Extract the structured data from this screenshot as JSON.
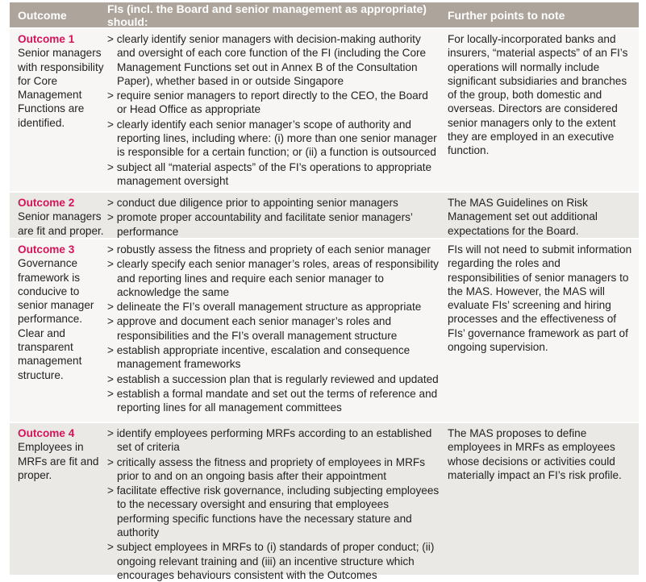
{
  "headers": [
    "Outcome",
    "FIs (incl. the Board and senior management as appropriate) should:",
    "Further points to note"
  ],
  "rows": [
    {
      "outcome": "Outcome 1",
      "description": "Senior managers with responsibility for Core Management Functions are identified.",
      "items": [
        "clearly identify senior managers with decision-making authority and oversight of each core function of the FI (including the Core Management Functions set out in Annex B of the Consultation Paper), whether based in or outside Singapore",
        "require senior managers to report directly to the CEO, the Board or Head Office as appropriate",
        "clearly identify each senior manager’s scope of authority and reporting lines, including where: (i) more than one senior manager is responsible for a certain function; or (ii) a function is outsourced",
        "subject all “material aspects” of the FI’s operations to appropriate management oversight"
      ],
      "notes": "For locally-incorporated banks and insurers, “material aspects” of an FI’s operations will normally include significant subsidiaries and branches of the group, both domestic and overseas. Directors are considered senior managers only to the extent they are employed in an executive function."
    },
    {
      "outcome": "Outcome 2",
      "description": "Senior managers are fit and proper.",
      "items": [
        "conduct due diligence prior to appointing senior managers",
        "promote proper accountability and facilitate senior managers’ performance"
      ],
      "notes": "The MAS Guidelines on Risk Management set out additional expectations for the Board."
    },
    {
      "outcome": "Outcome 3",
      "description": "Governance framework is conducive to senior manager performance. Clear and transparent management structure.",
      "items": [
        "robustly assess the fitness and propriety of each senior manager",
        "clearly specify each senior manager’s roles, areas of responsibility and reporting lines and require each senior manager to acknowledge the same",
        "delineate the FI’s overall management structure as appropriate",
        "approve and document each senior manager’s roles and responsibilities and the FI’s overall management structure",
        "establish appropriate incentive, escalation and consequence management frameworks",
        "establish a succession plan that is regularly reviewed and updated",
        "establish a formal mandate and set out the terms of reference and reporting lines for all management committees"
      ],
      "notes": "FIs will not need to submit information regarding the roles and responsibilities of senior managers to the MAS. However, the MAS will evaluate FIs’ screening and hiring processes and the effectiveness of FIs’ governance framework as part of ongoing supervision."
    },
    {
      "outcome": "Outcome 4",
      "description": "Employees in MRFs are fit and proper.",
      "items": [
        "identify employees performing MRFs according to an established set of criteria",
        "critically assess the fitness and propriety of employees in MRFs prior to and on an ongoing basis after their appointment",
        "facilitate effective risk governance, including subjecting employees to the necessary oversight and ensuring that employees performing specific functions have the necessary stature and authority",
        "subject employees in MRFs to (i) standards of proper conduct; (ii) ongoing relevant training and (iii) an incentive structure which encourages behaviours consistent with the Outcomes"
      ],
      "notes": "The MAS proposes to define employees in MRFs as employees whose decisions or activities could materially impact an FI’s risk profile."
    }
  ]
}
